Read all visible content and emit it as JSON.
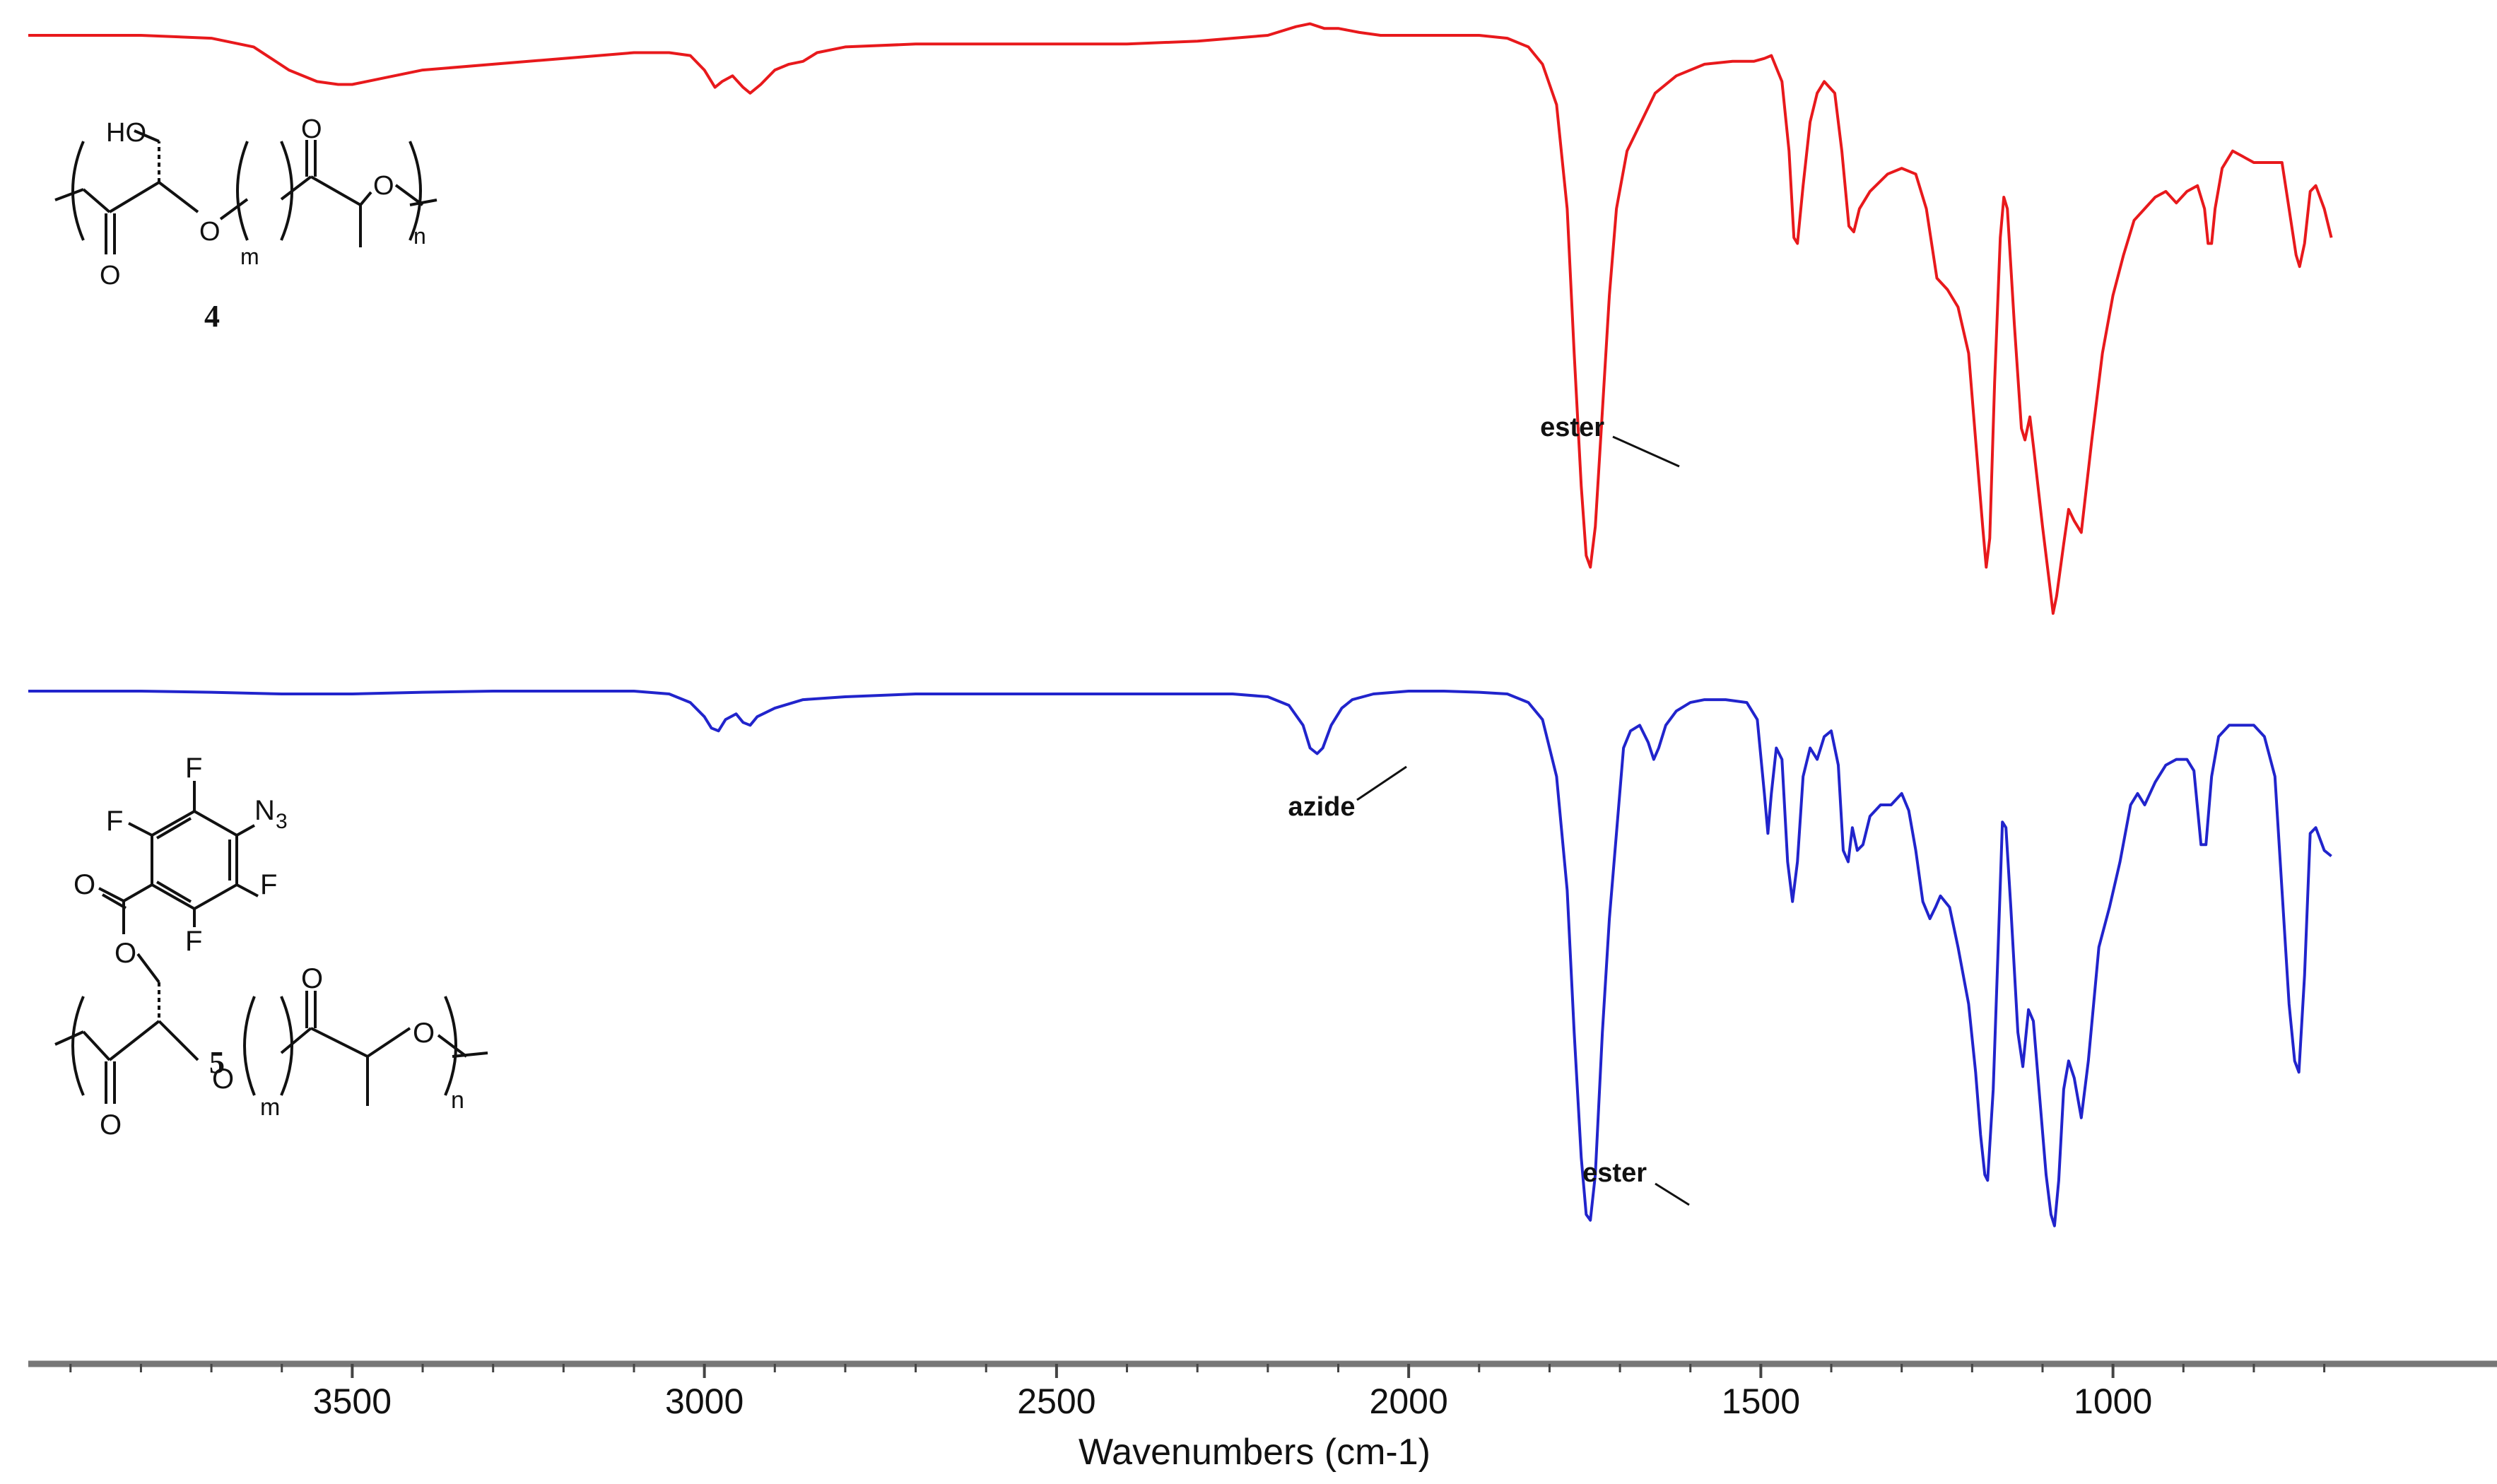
{
  "chart_data": {
    "type": "line",
    "title": "",
    "xlabel": "Wavenumbers (cm-1)",
    "ylabel": "",
    "xlim": [
      4000,
      650
    ],
    "x_reversed": true,
    "grid": false,
    "legend": "none",
    "x_ticks": [
      3500,
      3000,
      2500,
      2000,
      1500,
      1000
    ],
    "x_tick_labels": [
      "3500",
      "3000",
      "2500",
      "2000",
      "1500",
      "1000"
    ],
    "y_units": "relative transmittance (0 = baseline, -1 = deepest band), traces offset vertically",
    "series": [
      {
        "compound": "4",
        "color": "#e8191c",
        "points": [
          [
            3960,
            0.0
          ],
          [
            3800,
            0.0
          ],
          [
            3700,
            -0.005
          ],
          [
            3640,
            -0.02
          ],
          [
            3590,
            -0.06
          ],
          [
            3550,
            -0.08
          ],
          [
            3520,
            -0.085
          ],
          [
            3500,
            -0.085
          ],
          [
            3460,
            -0.075
          ],
          [
            3400,
            -0.06
          ],
          [
            3300,
            -0.05
          ],
          [
            3200,
            -0.04
          ],
          [
            3100,
            -0.03
          ],
          [
            3050,
            -0.03
          ],
          [
            3020,
            -0.035
          ],
          [
            3000,
            -0.06
          ],
          [
            2985,
            -0.09
          ],
          [
            2975,
            -0.08
          ],
          [
            2960,
            -0.07
          ],
          [
            2945,
            -0.09
          ],
          [
            2935,
            -0.1
          ],
          [
            2920,
            -0.085
          ],
          [
            2900,
            -0.06
          ],
          [
            2880,
            -0.05
          ],
          [
            2860,
            -0.045
          ],
          [
            2840,
            -0.03
          ],
          [
            2800,
            -0.02
          ],
          [
            2700,
            -0.015
          ],
          [
            2600,
            -0.015
          ],
          [
            2500,
            -0.015
          ],
          [
            2400,
            -0.015
          ],
          [
            2300,
            -0.01
          ],
          [
            2250,
            -0.005
          ],
          [
            2200,
            0.0
          ],
          [
            2160,
            0.015
          ],
          [
            2140,
            0.02
          ],
          [
            2120,
            0.012
          ],
          [
            2100,
            0.012
          ],
          [
            2070,
            0.005
          ],
          [
            2040,
            0.0
          ],
          [
            2000,
            0.0
          ],
          [
            1950,
            0.0
          ],
          [
            1900,
            0.0
          ],
          [
            1860,
            -0.005
          ],
          [
            1830,
            -0.02
          ],
          [
            1810,
            -0.05
          ],
          [
            1790,
            -0.12
          ],
          [
            1775,
            -0.3
          ],
          [
            1765,
            -0.55
          ],
          [
            1755,
            -0.78
          ],
          [
            1748,
            -0.9
          ],
          [
            1742,
            -0.92
          ],
          [
            1735,
            -0.85
          ],
          [
            1725,
            -0.65
          ],
          [
            1715,
            -0.45
          ],
          [
            1705,
            -0.3
          ],
          [
            1690,
            -0.2
          ],
          [
            1670,
            -0.15
          ],
          [
            1650,
            -0.1
          ],
          [
            1620,
            -0.07
          ],
          [
            1580,
            -0.05
          ],
          [
            1540,
            -0.045
          ],
          [
            1510,
            -0.045
          ],
          [
            1495,
            -0.04
          ],
          [
            1485,
            -0.035
          ],
          [
            1470,
            -0.08
          ],
          [
            1460,
            -0.2
          ],
          [
            1453,
            -0.35
          ],
          [
            1448,
            -0.36
          ],
          [
            1440,
            -0.26
          ],
          [
            1430,
            -0.15
          ],
          [
            1420,
            -0.1
          ],
          [
            1410,
            -0.08
          ],
          [
            1395,
            -0.1
          ],
          [
            1385,
            -0.2
          ],
          [
            1375,
            -0.33
          ],
          [
            1368,
            -0.34
          ],
          [
            1360,
            -0.3
          ],
          [
            1345,
            -0.27
          ],
          [
            1320,
            -0.24
          ],
          [
            1300,
            -0.23
          ],
          [
            1280,
            -0.24
          ],
          [
            1265,
            -0.3
          ],
          [
            1250,
            -0.42
          ],
          [
            1235,
            -0.44
          ],
          [
            1220,
            -0.47
          ],
          [
            1205,
            -0.55
          ],
          [
            1195,
            -0.7
          ],
          [
            1185,
            -0.85
          ],
          [
            1180,
            -0.92
          ],
          [
            1175,
            -0.87
          ],
          [
            1168,
            -0.6
          ],
          [
            1160,
            -0.35
          ],
          [
            1155,
            -0.28
          ],
          [
            1150,
            -0.3
          ],
          [
            1140,
            -0.5
          ],
          [
            1130,
            -0.68
          ],
          [
            1125,
            -0.7
          ],
          [
            1118,
            -0.66
          ],
          [
            1112,
            -0.72
          ],
          [
            1100,
            -0.85
          ],
          [
            1090,
            -0.95
          ],
          [
            1085,
            -1.0
          ],
          [
            1080,
            -0.97
          ],
          [
            1070,
            -0.88
          ],
          [
            1063,
            -0.82
          ],
          [
            1055,
            -0.84
          ],
          [
            1045,
            -0.86
          ],
          [
            1030,
            -0.7
          ],
          [
            1015,
            -0.55
          ],
          [
            1000,
            -0.45
          ],
          [
            985,
            -0.38
          ],
          [
            970,
            -0.32
          ],
          [
            955,
            -0.3
          ],
          [
            940,
            -0.28
          ],
          [
            925,
            -0.27
          ],
          [
            910,
            -0.29
          ],
          [
            895,
            -0.27
          ],
          [
            880,
            -0.26
          ],
          [
            870,
            -0.3
          ],
          [
            865,
            -0.36
          ],
          [
            860,
            -0.36
          ],
          [
            855,
            -0.3
          ],
          [
            845,
            -0.23
          ],
          [
            830,
            -0.2
          ],
          [
            815,
            -0.21
          ],
          [
            800,
            -0.22
          ],
          [
            780,
            -0.22
          ],
          [
            760,
            -0.22
          ],
          [
            750,
            -0.3
          ],
          [
            740,
            -0.38
          ],
          [
            735,
            -0.4
          ],
          [
            728,
            -0.36
          ],
          [
            720,
            -0.27
          ],
          [
            712,
            -0.26
          ],
          [
            700,
            -0.3
          ],
          [
            690,
            -0.35
          ]
        ]
      },
      {
        "compound": "5",
        "color": "#2124cc",
        "points": [
          [
            3960,
            0.0
          ],
          [
            3800,
            0.0
          ],
          [
            3700,
            -0.002
          ],
          [
            3600,
            -0.005
          ],
          [
            3500,
            -0.005
          ],
          [
            3400,
            -0.002
          ],
          [
            3300,
            0.0
          ],
          [
            3200,
            0.0
          ],
          [
            3100,
            0.0
          ],
          [
            3050,
            -0.005
          ],
          [
            3020,
            -0.02
          ],
          [
            3000,
            -0.045
          ],
          [
            2990,
            -0.065
          ],
          [
            2980,
            -0.07
          ],
          [
            2970,
            -0.05
          ],
          [
            2955,
            -0.04
          ],
          [
            2945,
            -0.055
          ],
          [
            2935,
            -0.06
          ],
          [
            2925,
            -0.045
          ],
          [
            2900,
            -0.03
          ],
          [
            2860,
            -0.015
          ],
          [
            2800,
            -0.01
          ],
          [
            2700,
            -0.005
          ],
          [
            2600,
            -0.005
          ],
          [
            2500,
            -0.005
          ],
          [
            2400,
            -0.005
          ],
          [
            2300,
            -0.005
          ],
          [
            2250,
            -0.005
          ],
          [
            2200,
            -0.01
          ],
          [
            2170,
            -0.025
          ],
          [
            2150,
            -0.06
          ],
          [
            2140,
            -0.1
          ],
          [
            2130,
            -0.11
          ],
          [
            2122,
            -0.1
          ],
          [
            2110,
            -0.06
          ],
          [
            2095,
            -0.03
          ],
          [
            2080,
            -0.015
          ],
          [
            2050,
            -0.005
          ],
          [
            2000,
            0.0
          ],
          [
            1950,
            0.0
          ],
          [
            1900,
            -0.002
          ],
          [
            1860,
            -0.005
          ],
          [
            1830,
            -0.02
          ],
          [
            1810,
            -0.05
          ],
          [
            1790,
            -0.15
          ],
          [
            1775,
            -0.35
          ],
          [
            1765,
            -0.6
          ],
          [
            1755,
            -0.82
          ],
          [
            1748,
            -0.92
          ],
          [
            1742,
            -0.93
          ],
          [
            1735,
            -0.85
          ],
          [
            1725,
            -0.6
          ],
          [
            1715,
            -0.4
          ],
          [
            1705,
            -0.25
          ],
          [
            1695,
            -0.1
          ],
          [
            1685,
            -0.07
          ],
          [
            1672,
            -0.06
          ],
          [
            1660,
            -0.09
          ],
          [
            1652,
            -0.12
          ],
          [
            1645,
            -0.1
          ],
          [
            1635,
            -0.06
          ],
          [
            1620,
            -0.035
          ],
          [
            1600,
            -0.02
          ],
          [
            1580,
            -0.015
          ],
          [
            1550,
            -0.015
          ],
          [
            1520,
            -0.02
          ],
          [
            1505,
            -0.05
          ],
          [
            1495,
            -0.18
          ],
          [
            1490,
            -0.25
          ],
          [
            1485,
            -0.18
          ],
          [
            1478,
            -0.1
          ],
          [
            1470,
            -0.12
          ],
          [
            1462,
            -0.3
          ],
          [
            1455,
            -0.37
          ],
          [
            1448,
            -0.3
          ],
          [
            1440,
            -0.15
          ],
          [
            1430,
            -0.1
          ],
          [
            1420,
            -0.12
          ],
          [
            1410,
            -0.08
          ],
          [
            1400,
            -0.07
          ],
          [
            1390,
            -0.13
          ],
          [
            1383,
            -0.28
          ],
          [
            1376,
            -0.3
          ],
          [
            1370,
            -0.24
          ],
          [
            1363,
            -0.28
          ],
          [
            1355,
            -0.27
          ],
          [
            1345,
            -0.22
          ],
          [
            1330,
            -0.2
          ],
          [
            1315,
            -0.2
          ],
          [
            1300,
            -0.18
          ],
          [
            1290,
            -0.21
          ],
          [
            1280,
            -0.28
          ],
          [
            1270,
            -0.37
          ],
          [
            1260,
            -0.4
          ],
          [
            1252,
            -0.38
          ],
          [
            1245,
            -0.36
          ],
          [
            1232,
            -0.38
          ],
          [
            1220,
            -0.45
          ],
          [
            1205,
            -0.55
          ],
          [
            1195,
            -0.67
          ],
          [
            1188,
            -0.78
          ],
          [
            1182,
            -0.85
          ],
          [
            1178,
            -0.86
          ],
          [
            1170,
            -0.7
          ],
          [
            1163,
            -0.45
          ],
          [
            1157,
            -0.23
          ],
          [
            1152,
            -0.24
          ],
          [
            1145,
            -0.38
          ],
          [
            1135,
            -0.6
          ],
          [
            1128,
            -0.66
          ],
          [
            1120,
            -0.56
          ],
          [
            1113,
            -0.58
          ],
          [
            1105,
            -0.7
          ],
          [
            1095,
            -0.85
          ],
          [
            1088,
            -0.92
          ],
          [
            1083,
            -0.94
          ],
          [
            1077,
            -0.86
          ],
          [
            1070,
            -0.7
          ],
          [
            1063,
            -0.65
          ],
          [
            1055,
            -0.68
          ],
          [
            1045,
            -0.75
          ],
          [
            1035,
            -0.65
          ],
          [
            1020,
            -0.45
          ],
          [
            1005,
            -0.38
          ],
          [
            990,
            -0.3
          ],
          [
            975,
            -0.2
          ],
          [
            965,
            -0.18
          ],
          [
            955,
            -0.2
          ],
          [
            940,
            -0.16
          ],
          [
            925,
            -0.13
          ],
          [
            910,
            -0.12
          ],
          [
            895,
            -0.12
          ],
          [
            885,
            -0.14
          ],
          [
            875,
            -0.27
          ],
          [
            868,
            -0.27
          ],
          [
            860,
            -0.15
          ],
          [
            850,
            -0.08
          ],
          [
            835,
            -0.06
          ],
          [
            815,
            -0.06
          ],
          [
            800,
            -0.06
          ],
          [
            785,
            -0.08
          ],
          [
            770,
            -0.15
          ],
          [
            760,
            -0.35
          ],
          [
            750,
            -0.55
          ],
          [
            742,
            -0.65
          ],
          [
            736,
            -0.67
          ],
          [
            728,
            -0.5
          ],
          [
            720,
            -0.25
          ],
          [
            712,
            -0.24
          ],
          [
            700,
            -0.28
          ],
          [
            690,
            -0.29
          ]
        ]
      }
    ],
    "annotations": [
      {
        "text": "ester",
        "series": 0
      },
      {
        "text": "azide",
        "series": 1
      },
      {
        "text": "ester",
        "series": 1
      }
    ]
  },
  "structures": {
    "compound_4": {
      "label": "4",
      "atoms": {
        "ho": "HO",
        "o_carbonyl_1": "O",
        "o_chain_1": "O",
        "o_carbonyl_2": "O",
        "o_chain_2": "O"
      },
      "subscripts": {
        "m": "m",
        "n": "n"
      }
    },
    "compound_5": {
      "label": "5",
      "atoms": {
        "f1": "F",
        "f2": "F",
        "f3": "F",
        "f4": "F",
        "n3": "N",
        "n3_sub": "3",
        "o_ester_dbl": "O",
        "o_ester_single": "O",
        "o_carbonyl_1": "O",
        "o_chain_1": "O",
        "o_carbonyl_2": "O",
        "o_chain_2": "O"
      },
      "subscripts": {
        "m": "m",
        "n": "n"
      }
    }
  }
}
